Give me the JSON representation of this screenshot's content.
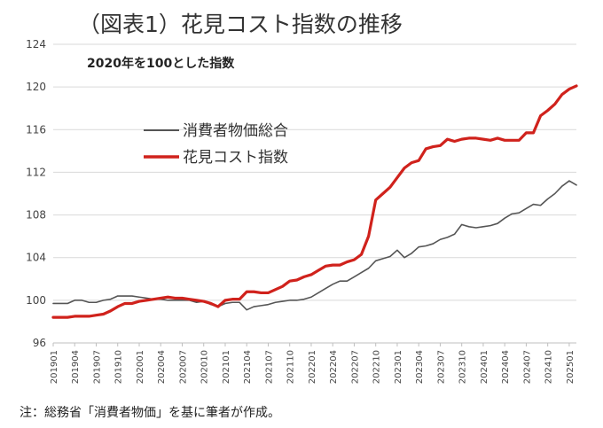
{
  "title": "（図表1）花見コスト指数の推移",
  "subtitle": "2020年を100とした指数",
  "note": "注：総務省「消費者物価」を基に筆者が作成。",
  "colors": {
    "cpi": "#555555",
    "hanami": "#d0221c",
    "grid": "#d9d9d9"
  },
  "chart_data": {
    "type": "line",
    "title": "（図表1）花見コスト指数の推移",
    "subtitle": "2020年を100とした指数",
    "xlabel": "",
    "ylabel": "",
    "ylim": [
      96,
      124
    ],
    "yticks": [
      96,
      100,
      104,
      108,
      112,
      116,
      120,
      124
    ],
    "grid": "horizontal",
    "legend": "upper-left",
    "xtick_labels": [
      "201901",
      "201904",
      "201907",
      "201910",
      "202001",
      "202004",
      "202007",
      "202010",
      "202101",
      "202104",
      "202107",
      "202110",
      "202201",
      "202204",
      "202207",
      "202210",
      "202301",
      "202304",
      "202307",
      "202310",
      "202401",
      "202404",
      "202407",
      "202410",
      "202501"
    ],
    "x": [
      "201901",
      "201902",
      "201903",
      "201904",
      "201905",
      "201906",
      "201907",
      "201908",
      "201909",
      "201910",
      "201911",
      "201912",
      "202001",
      "202002",
      "202003",
      "202004",
      "202005",
      "202006",
      "202007",
      "202008",
      "202009",
      "202010",
      "202011",
      "202012",
      "202101",
      "202102",
      "202103",
      "202104",
      "202105",
      "202106",
      "202107",
      "202108",
      "202109",
      "202110",
      "202111",
      "202112",
      "202201",
      "202202",
      "202203",
      "202204",
      "202205",
      "202206",
      "202207",
      "202208",
      "202209",
      "202210",
      "202211",
      "202212",
      "202301",
      "202302",
      "202303",
      "202304",
      "202305",
      "202306",
      "202307",
      "202308",
      "202309",
      "202310",
      "202311",
      "202312",
      "202401",
      "202402",
      "202403",
      "202404",
      "202405",
      "202406",
      "202407",
      "202408",
      "202409",
      "202410",
      "202411",
      "202412",
      "202501",
      "202502"
    ],
    "series": [
      {
        "name": "消費者物価総合",
        "values": [
          99.7,
          99.7,
          99.7,
          100.0,
          100.0,
          99.8,
          99.8,
          100.0,
          100.1,
          100.4,
          100.4,
          100.4,
          100.3,
          100.2,
          100.1,
          100.1,
          100.0,
          100.0,
          100.0,
          100.0,
          99.8,
          99.9,
          99.6,
          99.4,
          99.7,
          99.8,
          99.8,
          99.1,
          99.4,
          99.5,
          99.6,
          99.8,
          99.9,
          100.0,
          100.0,
          100.1,
          100.3,
          100.7,
          101.1,
          101.5,
          101.8,
          101.8,
          102.2,
          102.6,
          103.0,
          103.7,
          103.9,
          104.1,
          104.7,
          104.0,
          104.4,
          105.0,
          105.1,
          105.3,
          105.7,
          105.9,
          106.2,
          107.1,
          106.9,
          106.8,
          106.9,
          107.0,
          107.2,
          107.7,
          108.1,
          108.2,
          108.6,
          109.0,
          108.9,
          109.5,
          110.0,
          110.7,
          111.2,
          110.8
        ]
      },
      {
        "name": "花見コスト指数",
        "values": [
          98.4,
          98.4,
          98.4,
          98.5,
          98.5,
          98.5,
          98.6,
          98.7,
          99.0,
          99.4,
          99.7,
          99.7,
          99.9,
          100.0,
          100.1,
          100.2,
          100.3,
          100.2,
          100.2,
          100.1,
          100.0,
          99.9,
          99.7,
          99.4,
          100.0,
          100.1,
          100.1,
          100.8,
          100.8,
          100.7,
          100.7,
          101.0,
          101.3,
          101.8,
          101.9,
          102.2,
          102.4,
          102.8,
          103.2,
          103.3,
          103.3,
          103.6,
          103.8,
          104.3,
          106.0,
          109.4,
          110.0,
          110.6,
          111.5,
          112.4,
          112.9,
          113.1,
          114.2,
          114.4,
          114.5,
          115.1,
          114.9,
          115.1,
          115.2,
          115.2,
          115.1,
          115.0,
          115.2,
          115.0,
          115.0,
          115.0,
          115.7,
          115.7,
          117.3,
          117.8,
          118.4,
          119.3,
          119.8,
          120.1
        ]
      }
    ]
  }
}
